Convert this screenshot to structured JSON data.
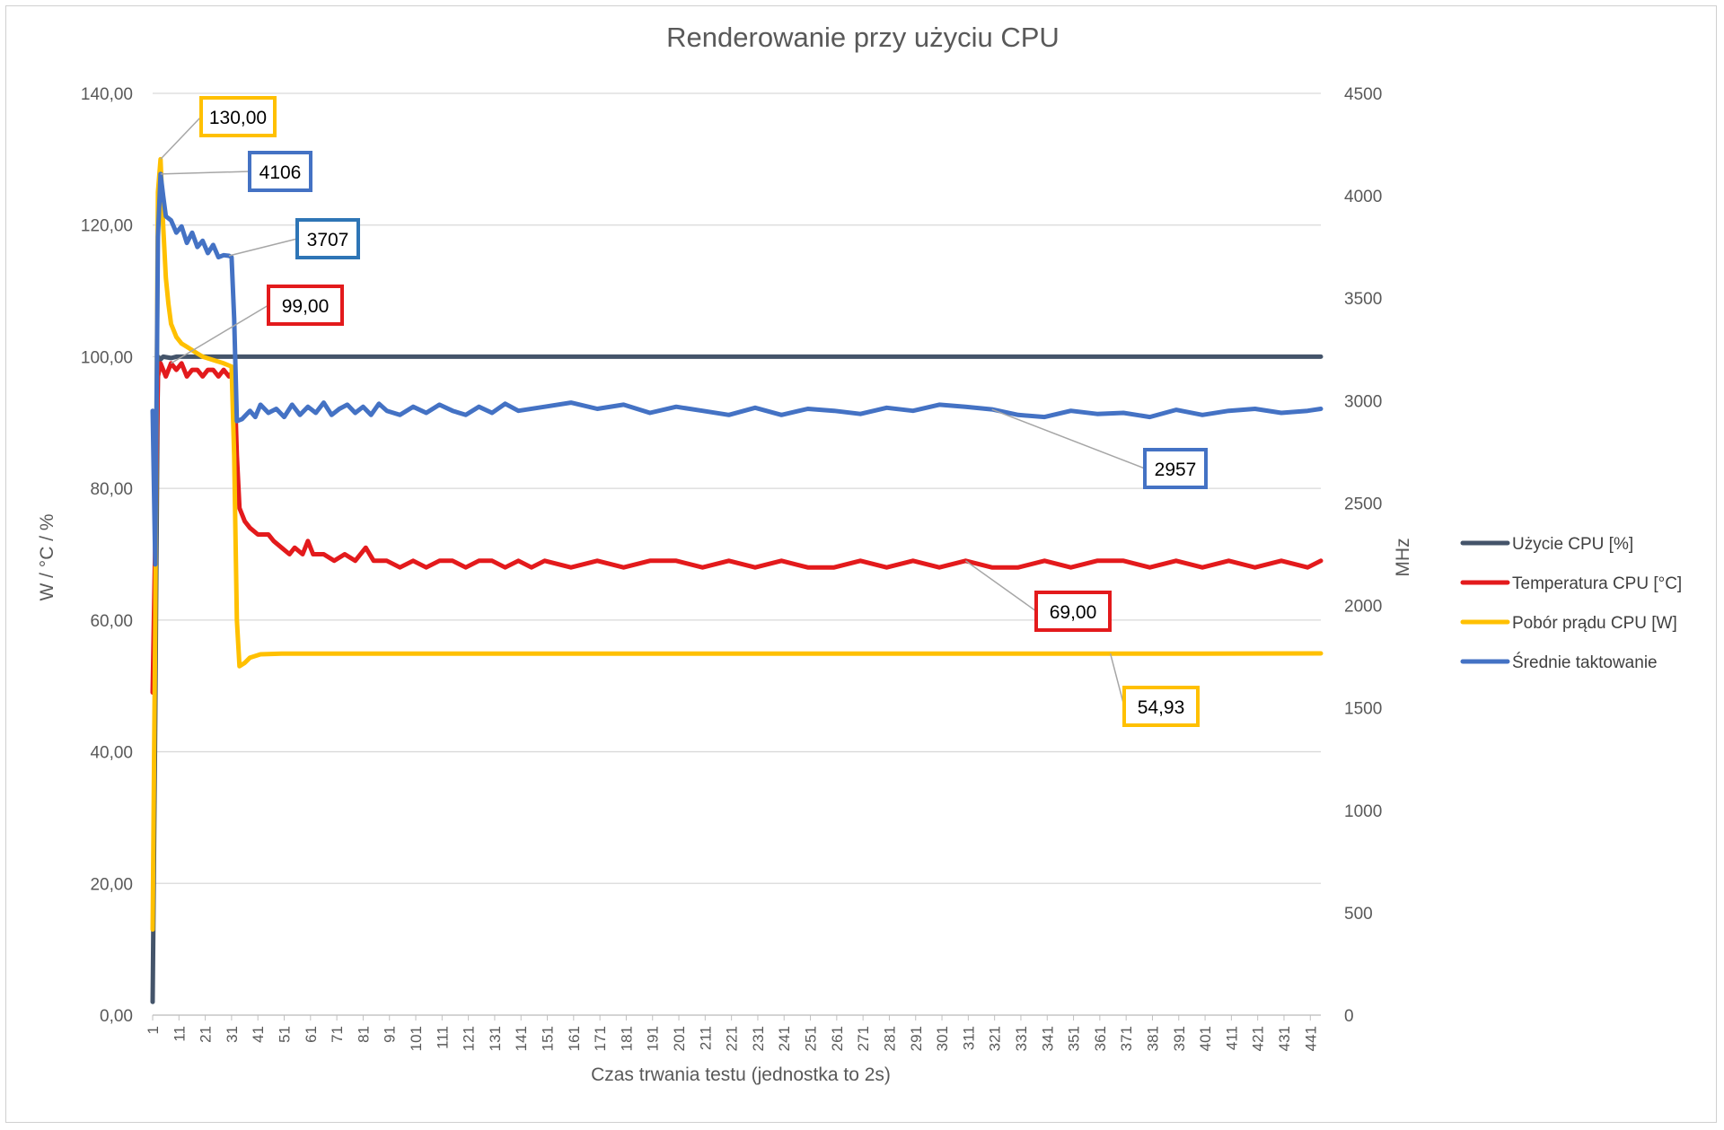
{
  "chart_data": {
    "type": "line",
    "title": "Renderowanie przy użyciu CPU",
    "xlabel": "Czas trwania testu (jednostka to 2s)",
    "ylabel_left": "W / °C / %",
    "ylabel_right": "MHz",
    "ylim_left": [
      0,
      140
    ],
    "ylim_right": [
      0,
      4500
    ],
    "yticks_left": [
      "0,00",
      "20,00",
      "40,00",
      "60,00",
      "80,00",
      "100,00",
      "120,00",
      "140,00"
    ],
    "yticks_right": [
      "0",
      "500",
      "1000",
      "1500",
      "2000",
      "2500",
      "3000",
      "3500",
      "4000",
      "4500"
    ],
    "xlim": [
      1,
      445
    ],
    "xticks": [
      "1",
      "11",
      "21",
      "31",
      "41",
      "51",
      "61",
      "71",
      "81",
      "91",
      "101",
      "111",
      "121",
      "131",
      "141",
      "151",
      "161",
      "171",
      "181",
      "191",
      "201",
      "211",
      "221",
      "231",
      "241",
      "251",
      "261",
      "271",
      "281",
      "291",
      "301",
      "311",
      "321",
      "331",
      "341",
      "351",
      "361",
      "371",
      "381",
      "391",
      "401",
      "411",
      "421",
      "431",
      "441"
    ],
    "grid": true,
    "legend_position": "right",
    "series": [
      {
        "name": "Użycie CPU [%]",
        "axis": "left",
        "color": "#44546a",
        "points": [
          [
            1,
            2
          ],
          [
            2,
            45
          ],
          [
            3,
            100
          ],
          [
            4,
            99.6
          ],
          [
            5,
            100
          ],
          [
            8,
            99.8
          ],
          [
            10,
            100
          ],
          [
            20,
            100
          ],
          [
            30,
            100
          ],
          [
            40,
            100
          ],
          [
            100,
            100
          ],
          [
            200,
            100
          ],
          [
            300,
            100
          ],
          [
            400,
            100
          ],
          [
            445,
            100
          ]
        ]
      },
      {
        "name": "Temperatura CPU [°C]",
        "axis": "left",
        "color": "#e31a1c",
        "points": [
          [
            1,
            49
          ],
          [
            2,
            72
          ],
          [
            3,
            97
          ],
          [
            4,
            99
          ],
          [
            6,
            97
          ],
          [
            8,
            99
          ],
          [
            10,
            98
          ],
          [
            12,
            99
          ],
          [
            14,
            97
          ],
          [
            16,
            98
          ],
          [
            18,
            98
          ],
          [
            20,
            97
          ],
          [
            22,
            98
          ],
          [
            24,
            98
          ],
          [
            26,
            97
          ],
          [
            28,
            98
          ],
          [
            30,
            97
          ],
          [
            32,
            98
          ],
          [
            33,
            85
          ],
          [
            34,
            77
          ],
          [
            36,
            75
          ],
          [
            38,
            74
          ],
          [
            41,
            73
          ],
          [
            45,
            73
          ],
          [
            47,
            72
          ],
          [
            50,
            71
          ],
          [
            53,
            70
          ],
          [
            55,
            71
          ],
          [
            58,
            70
          ],
          [
            60,
            72
          ],
          [
            62,
            70
          ],
          [
            66,
            70
          ],
          [
            70,
            69
          ],
          [
            74,
            70
          ],
          [
            78,
            69
          ],
          [
            82,
            71
          ],
          [
            85,
            69
          ],
          [
            90,
            69
          ],
          [
            95,
            68
          ],
          [
            100,
            69
          ],
          [
            105,
            68
          ],
          [
            110,
            69
          ],
          [
            115,
            69
          ],
          [
            120,
            68
          ],
          [
            125,
            69
          ],
          [
            130,
            69
          ],
          [
            135,
            68
          ],
          [
            140,
            69
          ],
          [
            145,
            68
          ],
          [
            150,
            69
          ],
          [
            160,
            68
          ],
          [
            170,
            69
          ],
          [
            180,
            68
          ],
          [
            190,
            69
          ],
          [
            200,
            69
          ],
          [
            210,
            68
          ],
          [
            220,
            69
          ],
          [
            230,
            68
          ],
          [
            240,
            69
          ],
          [
            250,
            68
          ],
          [
            260,
            68
          ],
          [
            270,
            69
          ],
          [
            280,
            68
          ],
          [
            290,
            69
          ],
          [
            300,
            68
          ],
          [
            310,
            69
          ],
          [
            320,
            68
          ],
          [
            330,
            68
          ],
          [
            340,
            69
          ],
          [
            350,
            68
          ],
          [
            360,
            69
          ],
          [
            370,
            69
          ],
          [
            380,
            68
          ],
          [
            390,
            69
          ],
          [
            400,
            68
          ],
          [
            410,
            69
          ],
          [
            420,
            68
          ],
          [
            430,
            69
          ],
          [
            440,
            68
          ],
          [
            445,
            69
          ]
        ]
      },
      {
        "name": "Pobór prądu CPU [W]",
        "axis": "left",
        "color": "#ffc000",
        "points": [
          [
            1,
            13
          ],
          [
            2,
            60
          ],
          [
            3,
            125
          ],
          [
            4,
            130
          ],
          [
            5,
            120
          ],
          [
            6,
            112
          ],
          [
            7,
            108
          ],
          [
            8,
            105
          ],
          [
            10,
            103
          ],
          [
            12,
            102
          ],
          [
            14,
            101.5
          ],
          [
            16,
            101
          ],
          [
            18,
            100.5
          ],
          [
            20,
            100
          ],
          [
            24,
            99.5
          ],
          [
            28,
            99
          ],
          [
            31,
            98.5
          ],
          [
            32,
            85
          ],
          [
            33,
            60
          ],
          [
            34,
            53
          ],
          [
            36,
            53.5
          ],
          [
            38,
            54.3
          ],
          [
            42,
            54.8
          ],
          [
            50,
            54.9
          ],
          [
            100,
            54.9
          ],
          [
            150,
            54.9
          ],
          [
            200,
            54.9
          ],
          [
            250,
            54.9
          ],
          [
            300,
            54.9
          ],
          [
            350,
            54.9
          ],
          [
            400,
            54.9
          ],
          [
            445,
            54.93
          ]
        ]
      },
      {
        "name": "Średnie taktowanie",
        "axis": "right",
        "color": "#4472c4",
        "points": [
          [
            1,
            2950
          ],
          [
            2,
            2200
          ],
          [
            3,
            3800
          ],
          [
            4,
            4106
          ],
          [
            5,
            4000
          ],
          [
            6,
            3900
          ],
          [
            8,
            3880
          ],
          [
            10,
            3820
          ],
          [
            12,
            3850
          ],
          [
            14,
            3770
          ],
          [
            16,
            3820
          ],
          [
            18,
            3750
          ],
          [
            20,
            3780
          ],
          [
            22,
            3720
          ],
          [
            24,
            3760
          ],
          [
            26,
            3700
          ],
          [
            28,
            3710
          ],
          [
            30,
            3707
          ],
          [
            31,
            3700
          ],
          [
            32,
            3400
          ],
          [
            33,
            2900
          ],
          [
            35,
            2910
          ],
          [
            38,
            2950
          ],
          [
            40,
            2920
          ],
          [
            42,
            2980
          ],
          [
            45,
            2940
          ],
          [
            48,
            2960
          ],
          [
            51,
            2920
          ],
          [
            54,
            2980
          ],
          [
            57,
            2930
          ],
          [
            60,
            2970
          ],
          [
            63,
            2940
          ],
          [
            66,
            2990
          ],
          [
            69,
            2930
          ],
          [
            72,
            2960
          ],
          [
            75,
            2980
          ],
          [
            78,
            2940
          ],
          [
            81,
            2970
          ],
          [
            84,
            2930
          ],
          [
            87,
            2985
          ],
          [
            90,
            2950
          ],
          [
            95,
            2930
          ],
          [
            100,
            2970
          ],
          [
            105,
            2940
          ],
          [
            110,
            2980
          ],
          [
            115,
            2950
          ],
          [
            120,
            2930
          ],
          [
            125,
            2970
          ],
          [
            130,
            2940
          ],
          [
            135,
            2985
          ],
          [
            140,
            2950
          ],
          [
            150,
            2970
          ],
          [
            160,
            2990
          ],
          [
            170,
            2960
          ],
          [
            180,
            2980
          ],
          [
            190,
            2940
          ],
          [
            200,
            2970
          ],
          [
            210,
            2950
          ],
          [
            220,
            2930
          ],
          [
            230,
            2965
          ],
          [
            240,
            2930
          ],
          [
            250,
            2960
          ],
          [
            260,
            2950
          ],
          [
            270,
            2935
          ],
          [
            280,
            2965
          ],
          [
            290,
            2950
          ],
          [
            300,
            2980
          ],
          [
            310,
            2970
          ],
          [
            320,
            2957
          ],
          [
            330,
            2930
          ],
          [
            340,
            2920
          ],
          [
            350,
            2950
          ],
          [
            360,
            2935
          ],
          [
            370,
            2940
          ],
          [
            380,
            2920
          ],
          [
            390,
            2955
          ],
          [
            400,
            2930
          ],
          [
            410,
            2950
          ],
          [
            420,
            2960
          ],
          [
            430,
            2940
          ],
          [
            440,
            2950
          ],
          [
            445,
            2960
          ]
        ]
      }
    ],
    "annotations": [
      {
        "text": "130,00",
        "series": "Pobór prądu CPU [W]",
        "x": 4,
        "y": 130
      },
      {
        "text": "4106",
        "series": "Średnie taktowanie",
        "x": 4,
        "y": 4106
      },
      {
        "text": "3707",
        "series": "Średnie taktowanie",
        "x": 30,
        "y": 3707
      },
      {
        "text": "99,00",
        "series": "Temperatura CPU [°C]",
        "x": 8,
        "y": 99
      },
      {
        "text": "2957",
        "series": "Średnie taktowanie",
        "x": 320,
        "y": 2957
      },
      {
        "text": "69,00",
        "series": "Temperatura CPU [°C]",
        "x": 310,
        "y": 69
      },
      {
        "text": "54,93",
        "series": "Pobór prądu CPU [W]",
        "x": 365,
        "y": 54.93
      }
    ]
  }
}
